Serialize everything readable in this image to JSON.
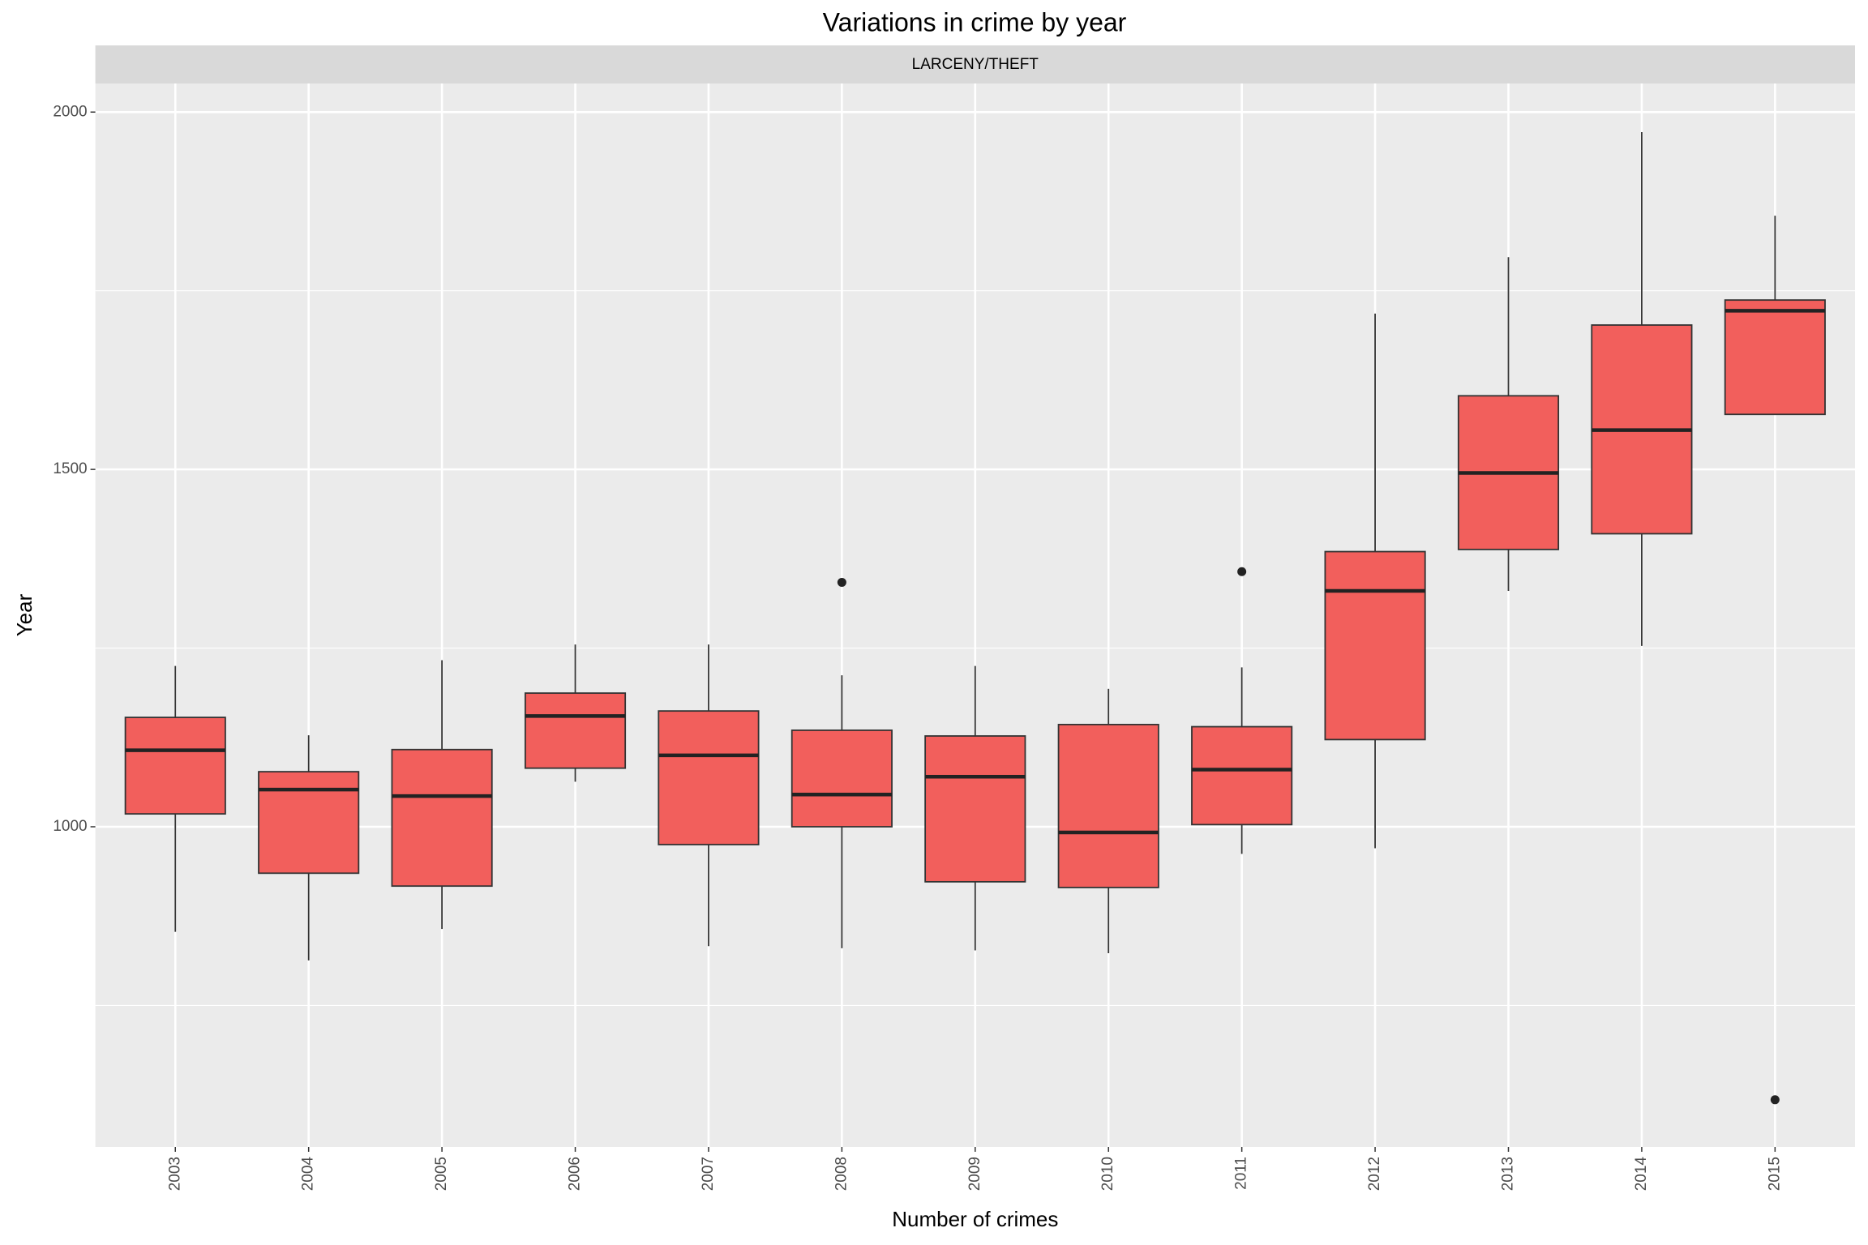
{
  "chart_data": {
    "type": "boxplot",
    "title": "Variations in crime by year",
    "facet": "LARCENY/THEFT",
    "x_label": "Number of crimes",
    "y_label": "Year",
    "color": "#f25f5c",
    "categories": [
      "2003",
      "2004",
      "2005",
      "2006",
      "2007",
      "2008",
      "2009",
      "2010",
      "2011",
      "2012",
      "2013",
      "2014",
      "2015"
    ],
    "boxes": [
      {
        "low": 853,
        "q1": 1018,
        "median": 1107,
        "q3": 1153,
        "high": 1225,
        "outliers": []
      },
      {
        "low": 813,
        "q1": 935,
        "median": 1052,
        "q3": 1077,
        "high": 1128,
        "outliers": []
      },
      {
        "low": 857,
        "q1": 917,
        "median": 1043,
        "q3": 1108,
        "high": 1233,
        "outliers": []
      },
      {
        "low": 1063,
        "q1": 1082,
        "median": 1155,
        "q3": 1187,
        "high": 1255,
        "outliers": []
      },
      {
        "low": 833,
        "q1": 975,
        "median": 1100,
        "q3": 1162,
        "high": 1255,
        "outliers": []
      },
      {
        "low": 830,
        "q1": 1000,
        "median": 1045,
        "q3": 1135,
        "high": 1212,
        "outliers": [
          1342
        ]
      },
      {
        "low": 827,
        "q1": 923,
        "median": 1070,
        "q3": 1127,
        "high": 1225,
        "outliers": []
      },
      {
        "low": 823,
        "q1": 915,
        "median": 992,
        "q3": 1143,
        "high": 1193,
        "outliers": []
      },
      {
        "low": 962,
        "q1": 1003,
        "median": 1080,
        "q3": 1140,
        "high": 1223,
        "outliers": [
          1357
        ]
      },
      {
        "low": 970,
        "q1": 1122,
        "median": 1330,
        "q3": 1385,
        "high": 1718,
        "outliers": []
      },
      {
        "low": 1330,
        "q1": 1388,
        "median": 1495,
        "q3": 1603,
        "high": 1797,
        "outliers": []
      },
      {
        "low": 1253,
        "q1": 1410,
        "median": 1555,
        "q3": 1702,
        "high": 1972,
        "outliers": []
      },
      {
        "low": 1577,
        "q1": 1577,
        "median": 1722,
        "q3": 1737,
        "high": 1855,
        "outliers": [
          618
        ]
      }
    ],
    "ylim": [
      552,
      2040
    ],
    "yticks": [
      1000,
      1500,
      2000
    ],
    "y_minor_grid": [
      750,
      1250,
      1750
    ],
    "grid": true
  }
}
